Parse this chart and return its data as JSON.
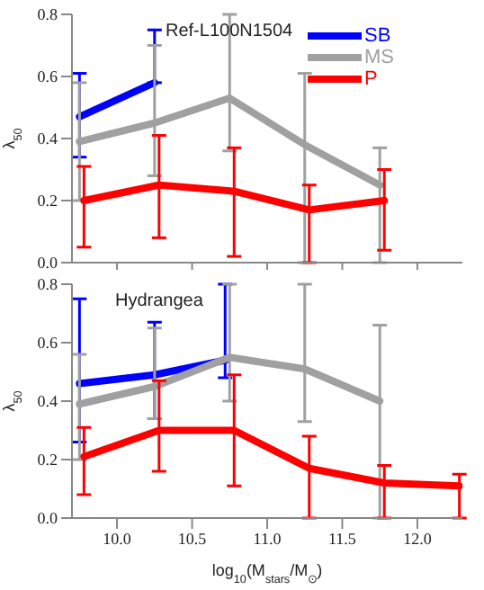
{
  "chart_data": [
    {
      "type": "line",
      "annotations": [
        "Ref-L100N1504"
      ],
      "ylabel": "λ$_{50}$",
      "xlim": [
        9.7,
        12.3
      ],
      "xticks": [
        10,
        10.5,
        11,
        11.5,
        12
      ],
      "ylim": [
        0,
        0.8
      ],
      "yticks": [
        {
          "value": 0,
          "label": "0.0"
        },
        {
          "value": 0.2,
          "label": "0.2"
        },
        {
          "value": 0.4,
          "label": "0.4"
        },
        {
          "value": 0.6,
          "label": "0.6"
        },
        {
          "value": 0.8,
          "label": "0.8"
        }
      ],
      "tick_labels": "y",
      "legend": "top right",
      "grid": false,
      "marker": "none",
      "series": [
        {
          "name": "SB",
          "color": "#0000ff",
          "x": [
            9.75,
            10.25
          ],
          "values": [
            0.47,
            0.58
          ],
          "errors": [
            [
              0.34,
              0.61
            ],
            [
              0.58,
              0.75
            ]
          ]
        },
        {
          "name": "MS",
          "color": "#a0a0a0",
          "x": [
            9.75,
            10.25,
            10.75,
            11.25,
            11.75
          ],
          "values": [
            0.39,
            0.45,
            0.53,
            0.38,
            0.25
          ],
          "errors": [
            [
              0.2,
              0.58
            ],
            [
              0.28,
              0.7
            ],
            [
              0.36,
              0.8
            ],
            [
              0,
              0.61
            ],
            [
              0,
              0.37
            ]
          ]
        },
        {
          "name": "P",
          "color": "#ff0000",
          "x": [
            9.78,
            10.28,
            10.78,
            11.28,
            11.78
          ],
          "values": [
            0.2,
            0.25,
            0.23,
            0.17,
            0.2
          ],
          "errors": [
            [
              0.05,
              0.31
            ],
            [
              0.08,
              0.41
            ],
            [
              0.02,
              0.37
            ],
            [
              0,
              0.25
            ],
            [
              0.04,
              0.3
            ]
          ]
        }
      ]
    },
    {
      "type": "line",
      "annotations": [
        "Hydrangea"
      ],
      "ylabel": "λ$_{50}$",
      "xlabel": "log$_{10}$(M$_{stars}$/M$_{⊙}$)",
      "xlim": [
        9.7,
        12.3
      ],
      "xticks": [
        {
          "value": 10,
          "label": "10.0"
        },
        {
          "value": 10.5,
          "label": "10.5"
        },
        {
          "value": 11,
          "label": "11.0"
        },
        {
          "value": 11.5,
          "label": "11.5"
        },
        {
          "value": 12,
          "label": "12.0"
        }
      ],
      "ylim": [
        0,
        0.8
      ],
      "yticks": [
        {
          "value": 0,
          "label": "0.0"
        },
        {
          "value": 0.2,
          "label": "0.2"
        },
        {
          "value": 0.4,
          "label": "0.4"
        },
        {
          "value": 0.6,
          "label": "0.6"
        },
        {
          "value": 0.8,
          "label": "0.8"
        }
      ],
      "grid": false,
      "marker": "none",
      "series": [
        {
          "color": "#0000ff",
          "x": [
            9.75,
            10.25,
            10.72
          ],
          "values": [
            0.46,
            0.49,
            0.54
          ],
          "errors": [
            [
              0.26,
              0.75
            ],
            [
              0.34,
              0.67
            ],
            [
              0.48,
              0.8
            ]
          ]
        },
        {
          "color": "#a0a0a0",
          "x": [
            9.75,
            10.25,
            10.75,
            11.25,
            11.75
          ],
          "values": [
            0.39,
            0.45,
            0.55,
            0.51,
            0.4
          ],
          "errors": [
            [
              0.2,
              0.56
            ],
            [
              0.34,
              0.65
            ],
            [
              0.4,
              0.8
            ],
            [
              0.33,
              0.8
            ],
            [
              0,
              0.66
            ]
          ]
        },
        {
          "color": "#ff0000",
          "x": [
            9.78,
            10.28,
            10.78,
            11.28,
            11.78,
            12.28
          ],
          "values": [
            0.21,
            0.3,
            0.3,
            0.17,
            0.12,
            0.11
          ],
          "errors": [
            [
              0.08,
              0.31
            ],
            [
              0.16,
              0.47
            ],
            [
              0.11,
              0.49
            ],
            [
              0,
              0.28
            ],
            [
              0,
              0.18
            ],
            [
              0,
              0.15
            ]
          ]
        }
      ]
    }
  ]
}
